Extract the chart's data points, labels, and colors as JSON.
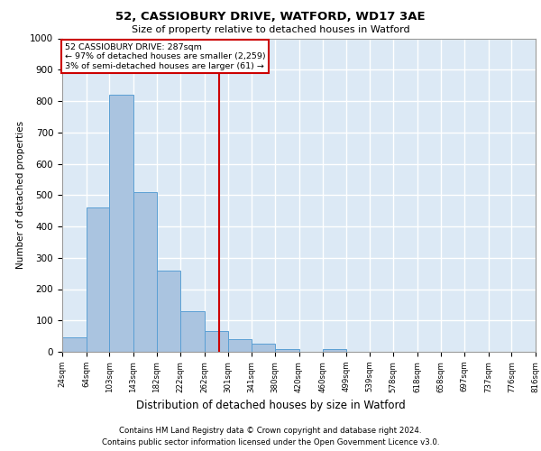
{
  "title1": "52, CASSIOBURY DRIVE, WATFORD, WD17 3AE",
  "title2": "Size of property relative to detached houses in Watford",
  "xlabel": "Distribution of detached houses by size in Watford",
  "ylabel": "Number of detached properties",
  "footer1": "Contains HM Land Registry data © Crown copyright and database right 2024.",
  "footer2": "Contains public sector information licensed under the Open Government Licence v3.0.",
  "annotation_line1": "52 CASSIOBURY DRIVE: 287sqm",
  "annotation_line2": "← 97% of detached houses are smaller (2,259)",
  "annotation_line3": "3% of semi-detached houses are larger (61) →",
  "property_size": 287,
  "bar_edges": [
    24,
    64,
    103,
    143,
    182,
    222,
    262,
    301,
    341,
    380,
    420,
    460,
    499,
    539,
    578,
    618,
    658,
    697,
    737,
    776,
    816
  ],
  "bar_heights": [
    45,
    460,
    820,
    510,
    260,
    130,
    65,
    40,
    25,
    10,
    0,
    10,
    0,
    0,
    0,
    0,
    0,
    0,
    0,
    0
  ],
  "bar_color": "#aac4e0",
  "bar_edge_color": "#5a9fd4",
  "redline_color": "#cc0000",
  "annotation_box_edge": "#cc0000",
  "background_color": "#dce9f5",
  "grid_color": "#ffffff",
  "ylim": [
    0,
    1000
  ],
  "yticks": [
    0,
    100,
    200,
    300,
    400,
    500,
    600,
    700,
    800,
    900,
    1000
  ]
}
